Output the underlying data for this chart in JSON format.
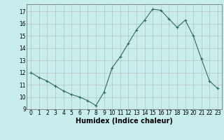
{
  "x": [
    0,
    1,
    2,
    3,
    4,
    5,
    6,
    7,
    8,
    9,
    10,
    11,
    12,
    13,
    14,
    15,
    16,
    17,
    18,
    19,
    20,
    21,
    22,
    23
  ],
  "y": [
    12.0,
    11.6,
    11.3,
    10.9,
    10.5,
    10.2,
    10.0,
    9.7,
    9.3,
    10.4,
    12.4,
    13.3,
    14.4,
    15.5,
    16.3,
    17.2,
    17.1,
    16.4,
    15.7,
    16.3,
    15.0,
    13.1,
    11.3,
    10.7
  ],
  "xlabel": "Humidex (Indice chaleur)",
  "xlim": [
    -0.5,
    23.5
  ],
  "ylim": [
    9,
    17.6
  ],
  "yticks": [
    9,
    10,
    11,
    12,
    13,
    14,
    15,
    16,
    17
  ],
  "xticks": [
    0,
    1,
    2,
    3,
    4,
    5,
    6,
    7,
    8,
    9,
    10,
    11,
    12,
    13,
    14,
    15,
    16,
    17,
    18,
    19,
    20,
    21,
    22,
    23
  ],
  "line_color": "#2d6b5e",
  "marker_color": "#2d6b5e",
  "bg_color": "#c8eded",
  "major_grid_color": "#b8c8c8",
  "minor_grid_color": "#d8e8e8",
  "xlabel_fontsize": 7,
  "tick_fontsize": 5.5
}
